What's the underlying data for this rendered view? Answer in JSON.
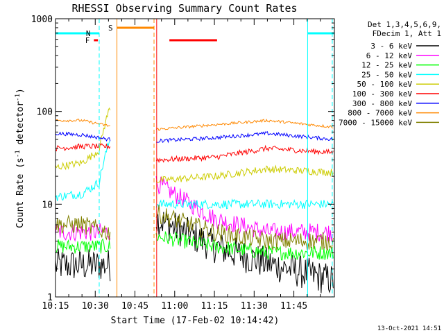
{
  "chart_data": {
    "type": "line",
    "title": "RHESSI Observing Summary Count Rates",
    "xlabel": "Start Time (17-Feb-02 10:14:42)",
    "ylabel_parts": [
      "Count Rate (s",
      "-1",
      " detector",
      "-1",
      ")"
    ],
    "yscale": "log",
    "ylim": [
      1,
      1000
    ],
    "y_ticks": [
      {
        "value": 1,
        "label": "1"
      },
      {
        "value": 10,
        "label": "10"
      },
      {
        "value": 100,
        "label": "100"
      },
      {
        "value": 1000,
        "label": "1000"
      }
    ],
    "xlim_minutes": [
      0,
      105.3
    ],
    "x_ticks": [
      {
        "minute": 0,
        "label": "10:15"
      },
      {
        "minute": 15,
        "label": "10:30"
      },
      {
        "minute": 30,
        "label": "10:45"
      },
      {
        "minute": 45,
        "label": "11:00"
      },
      {
        "minute": 60,
        "label": "11:15"
      },
      {
        "minute": 75,
        "label": "11:30"
      },
      {
        "minute": 90,
        "label": "11:45"
      }
    ],
    "legend_header": [
      "Det 1,3,4,5,6,9,",
      "FDecim 1, Att 1"
    ],
    "legend_placement": "right",
    "series": [
      {
        "name": "3 - 6 keV",
        "color": "#000000",
        "values": [
          2.2,
          2.2,
          2.2,
          0,
          7,
          3.5,
          2.3,
          1.5
        ]
      },
      {
        "name": "6 - 12 keV",
        "color": "#ff00ff",
        "values": [
          5,
          5,
          5,
          0,
          17,
          7,
          5,
          5
        ]
      },
      {
        "name": "12 - 25 keV",
        "color": "#00ff00",
        "values": [
          3.5,
          3.5,
          3.5,
          0,
          4.5,
          3.5,
          3,
          3
        ]
      },
      {
        "name": "25 - 50 keV",
        "color": "#00ffff",
        "values": [
          12,
          13,
          20,
          0,
          10,
          10,
          10,
          10
        ]
      },
      {
        "name": "50 - 100 keV",
        "color": "#cccc00",
        "values": [
          25,
          28,
          45,
          0,
          18,
          20,
          24,
          22
        ]
      },
      {
        "name": "100 - 300 keV",
        "color": "#ff0000",
        "values": [
          40,
          42,
          42,
          0,
          30,
          32,
          40,
          36
        ]
      },
      {
        "name": "300 - 800 keV",
        "color": "#0000ff",
        "values": [
          58,
          56,
          50,
          0,
          48,
          52,
          58,
          50
        ]
      },
      {
        "name": "800 - 7000 keV",
        "color": "#ff8800",
        "values": [
          80,
          80,
          70,
          0,
          64,
          72,
          80,
          68
        ]
      },
      {
        "name": "7000 - 15000 keV",
        "color": "#808000",
        "values": [
          6,
          6,
          5,
          0,
          8,
          5,
          4,
          4
        ]
      }
    ],
    "segment_minutes": [
      [
        0,
        21
      ],
      [
        38,
        105
      ]
    ],
    "gap_minutes": [
      21,
      38
    ],
    "vlines": [
      {
        "minute": 16.5,
        "color": "#00ffff",
        "dash": true
      },
      {
        "minute": 23.2,
        "color": "#ff8800",
        "dash": false
      },
      {
        "minute": 37.2,
        "color": "#ff8800",
        "dash": true
      },
      {
        "minute": 38.2,
        "color": "#ff0000",
        "dash": false
      },
      {
        "minute": 95.2,
        "color": "#00ffff",
        "dash": false
      },
      {
        "minute": 104.5,
        "color": "#00ffff",
        "dash": true
      }
    ],
    "flag_bars": [
      {
        "label": "",
        "color": "#00ffff",
        "start": 0,
        "end": 16.5,
        "y": 48
      },
      {
        "label": "N",
        "color": "#00ffff",
        "start": 14.8,
        "end": 16.5,
        "y": 48
      },
      {
        "label": "F",
        "color": "#ff0000",
        "start": 14.5,
        "end": 16,
        "y": 58
      },
      {
        "label": "S",
        "color": "#ff8800",
        "start": 23.2,
        "end": 37.2,
        "y": 40
      },
      {
        "label": "",
        "color": "#ff0000",
        "start": 43,
        "end": 61,
        "y": 58
      },
      {
        "label": "",
        "color": "#00ffff",
        "start": 95.2,
        "end": 105.3,
        "y": 48
      }
    ],
    "timestamp": "13-Oct-2021 14:51"
  }
}
